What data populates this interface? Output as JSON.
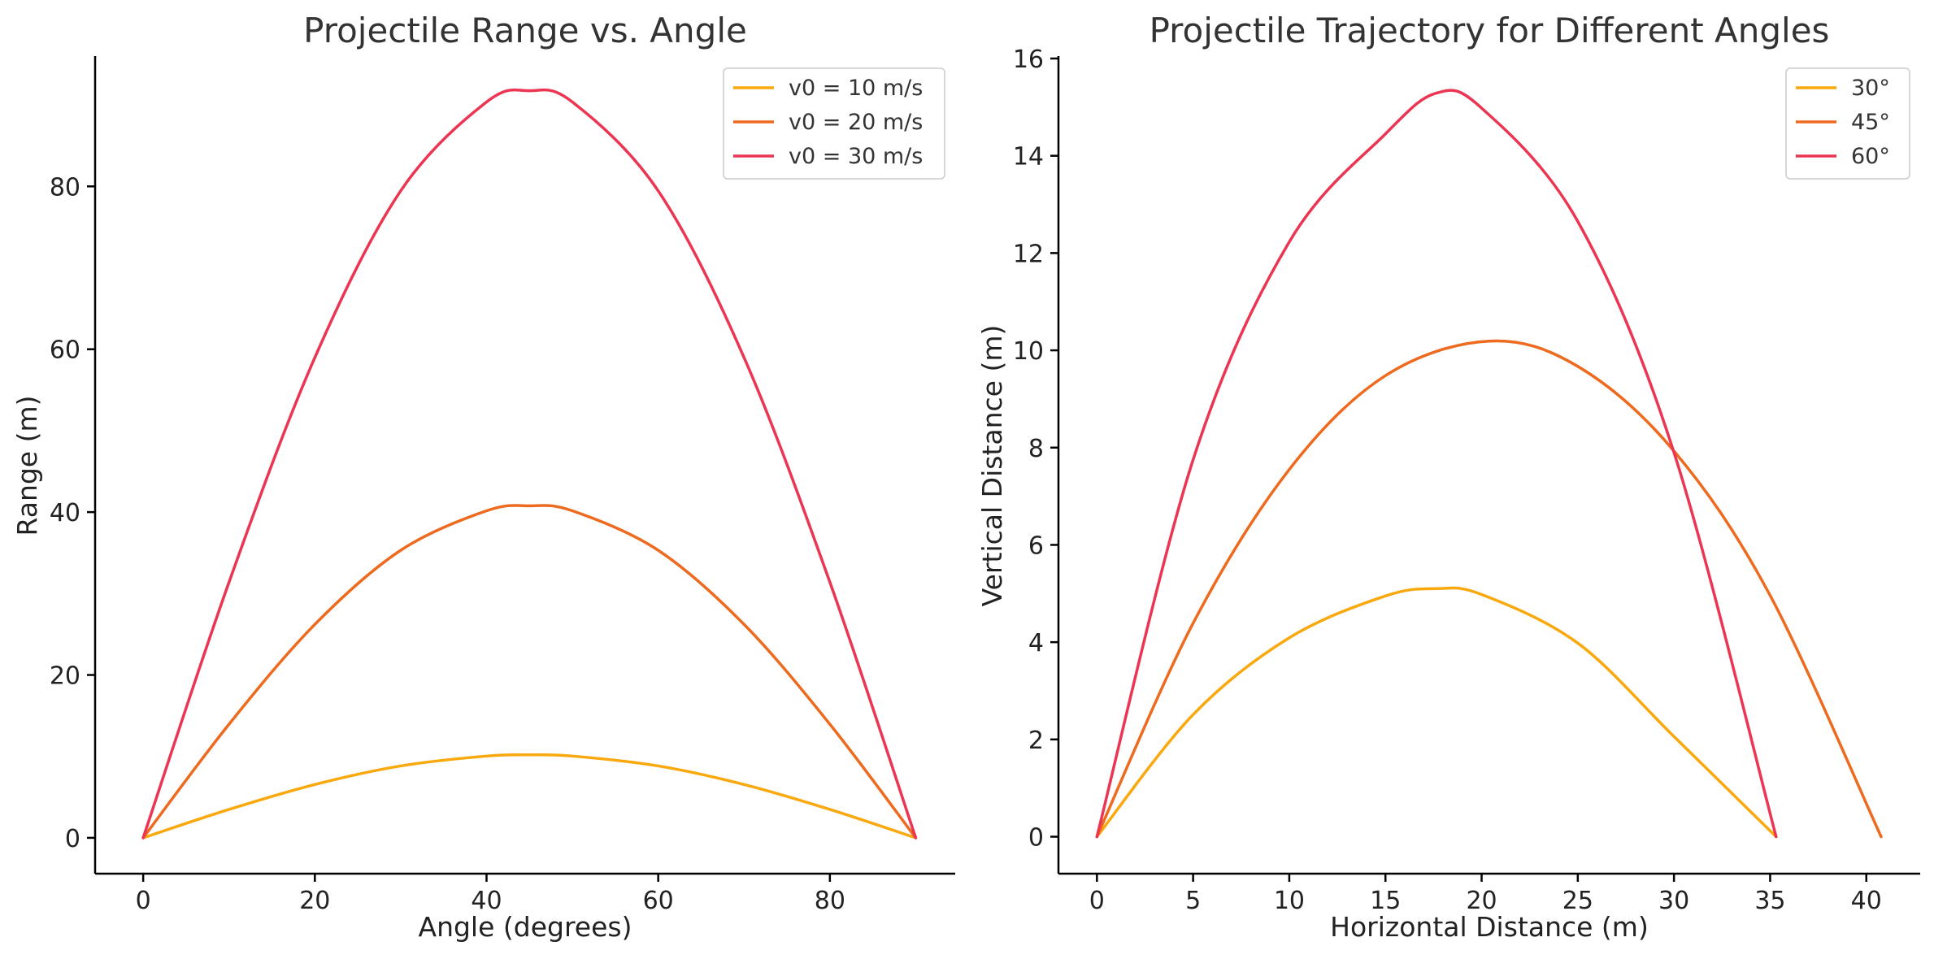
{
  "colors": {
    "c1": "#F9A80D",
    "c2": "#ED6A1F",
    "c3": "#EB3552"
  },
  "chart_data": [
    {
      "type": "line",
      "title": "Projectile Range vs. Angle",
      "xlabel": "Angle (degrees)",
      "ylabel": "Range (m)",
      "xlim": [
        -5.6,
        94.6
      ],
      "ylim": [
        -4.4,
        96.0
      ],
      "xticks": [
        0,
        20,
        40,
        60,
        80
      ],
      "yticks": [
        0,
        20,
        40,
        60,
        80
      ],
      "legend_position": "top-right",
      "x": [
        0,
        10,
        20,
        30,
        40,
        45,
        50,
        60,
        70,
        80,
        90
      ],
      "series": [
        {
          "name": "v0 = 10 m/s",
          "color": "#F9A80D",
          "y": [
            0,
            3.49,
            6.55,
            8.83,
            10.04,
            10.19,
            10.04,
            8.83,
            6.55,
            3.49,
            0
          ]
        },
        {
          "name": "v0 = 20 m/s",
          "color": "#ED6A1F",
          "y": [
            0,
            13.95,
            26.21,
            35.31,
            40.16,
            40.77,
            40.16,
            35.31,
            26.21,
            13.95,
            0
          ]
        },
        {
          "name": "v0 = 30 m/s",
          "color": "#EB3552",
          "y": [
            0,
            31.39,
            58.98,
            79.45,
            90.36,
            91.74,
            90.36,
            79.45,
            58.98,
            31.39,
            0
          ]
        }
      ]
    },
    {
      "type": "line",
      "title": "Projectile Trajectory for Different Angles",
      "xlabel": "Horizontal Distance (m)",
      "ylabel": "Vertical Distance (m)",
      "xlim": [
        -2.0,
        42.8
      ],
      "ylim": [
        -0.76,
        16.05
      ],
      "xticks": [
        0,
        5,
        10,
        15,
        20,
        25,
        30,
        35,
        40
      ],
      "yticks": [
        0,
        2,
        4,
        6,
        8,
        10,
        12,
        14,
        16
      ],
      "legend_position": "top-right",
      "series": [
        {
          "name": "30°",
          "color": "#F9A80D",
          "x": [
            0,
            5,
            10,
            15,
            17.66,
            20,
            25,
            30,
            35.31
          ],
          "y": [
            0,
            2.51,
            4.09,
            4.95,
            5.1,
            4.98,
            3.98,
            2.06,
            0
          ]
        },
        {
          "name": "45°",
          "color": "#ED6A1F",
          "x": [
            0,
            5,
            10,
            15,
            20.39,
            25,
            30,
            35,
            40.77
          ],
          "y": [
            0,
            4.39,
            7.55,
            9.48,
            10.19,
            9.67,
            7.93,
            4.96,
            0
          ]
        },
        {
          "name": "60°",
          "color": "#EB3552",
          "x": [
            0,
            5,
            10,
            15,
            17.66,
            20,
            25,
            30,
            35.31
          ],
          "y": [
            0,
            7.75,
            12.23,
            14.45,
            15.29,
            14.98,
            12.65,
            7.9,
            0
          ]
        }
      ]
    }
  ]
}
